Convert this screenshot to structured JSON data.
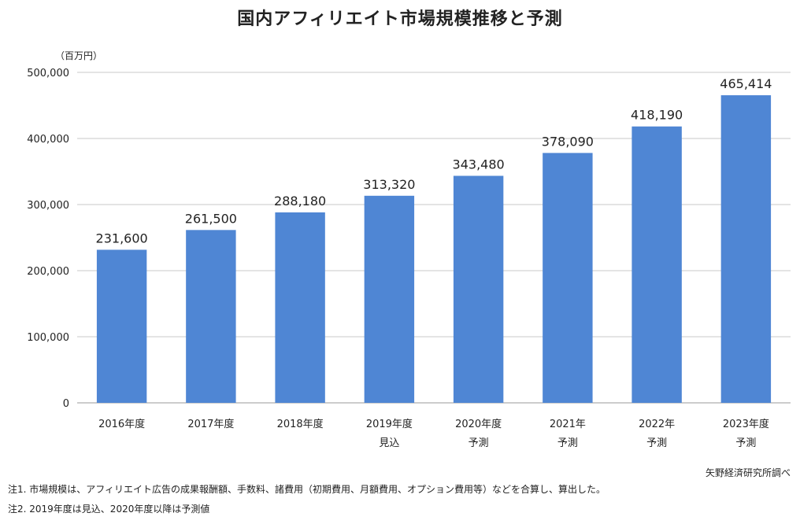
{
  "chart_data": {
    "type": "bar",
    "title": "国内アフィリエイト市場規模推移と予測",
    "unit_label": "（百万円）",
    "categories": [
      [
        "2016年度"
      ],
      [
        "2017年度"
      ],
      [
        "2018年度"
      ],
      [
        "2019年度",
        "見込"
      ],
      [
        "2020年度",
        "予測"
      ],
      [
        "2021年",
        "予測"
      ],
      [
        "2022年",
        "予測"
      ],
      [
        "2023年度",
        "予測"
      ]
    ],
    "values": [
      231600,
      261500,
      288180,
      313320,
      343480,
      378090,
      418190,
      465414
    ],
    "value_labels": [
      "231,600",
      "261,500",
      "288,180",
      "313,320",
      "343,480",
      "378,090",
      "418,190",
      "465,414"
    ],
    "ylim": [
      0,
      500000
    ],
    "yticks": [
      0,
      100000,
      200000,
      300000,
      400000,
      500000
    ],
    "ytick_labels": [
      "0",
      "100,000",
      "200,000",
      "300,000",
      "400,000",
      "500,000"
    ],
    "grid": true,
    "bar_color": "#4f86d4"
  },
  "source": "矢野経済研究所調べ",
  "notes": [
    "注1.  市場規模は、アフィリエイト広告の成果報酬額、手数料、諸費用（初期費用、月額費用、オプション費用等）などを合算し、算出した。",
    "注2.  2019年度は見込、2020年度以降は予測値"
  ]
}
